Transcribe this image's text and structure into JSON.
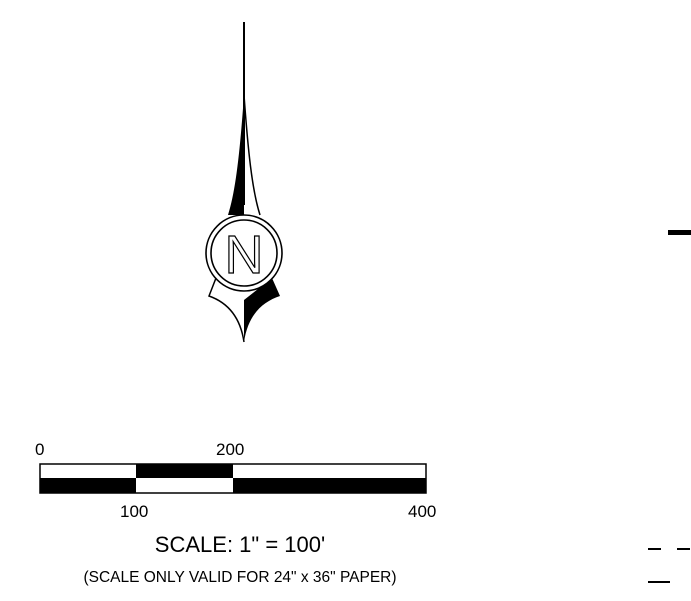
{
  "north_arrow": {
    "letter": "N",
    "icon": "north-arrow-icon"
  },
  "scale_bar": {
    "top_labels": [
      "0",
      "200"
    ],
    "bottom_labels": [
      "100",
      "400"
    ],
    "scale_text": "SCALE: 1\" = 100'",
    "note": "(SCALE ONLY VALID FOR 24\" x 36\" PAPER)"
  },
  "colors": {
    "ink": "#000000",
    "paper": "#ffffff"
  }
}
